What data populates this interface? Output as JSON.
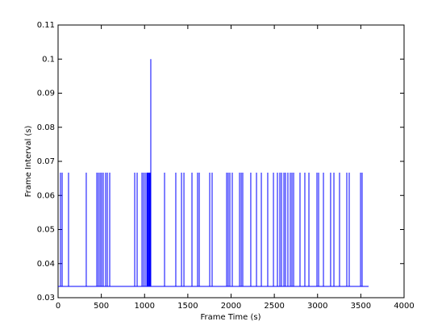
{
  "chart_data": {
    "type": "line",
    "xlabel": "Frame Time (s)",
    "ylabel": "Frame Interval (s)",
    "color": "#0000ff",
    "xlim": [
      0,
      4000
    ],
    "xticks": [
      0,
      500,
      1000,
      1500,
      2000,
      2500,
      3000,
      3500,
      4000
    ],
    "ylim": [
      0.03,
      0.11
    ],
    "yticks": [
      0.03,
      0.04,
      0.05,
      0.06,
      0.07,
      0.08,
      0.09,
      0.1,
      0.11
    ],
    "x": [
      0,
      28,
      28,
      28,
      47,
      47,
      47,
      121,
      121,
      121,
      326,
      326,
      326,
      448,
      448,
      448,
      466,
      466,
      466,
      485,
      485,
      485,
      503,
      503,
      503,
      522,
      522,
      522,
      550,
      550,
      550,
      569,
      569,
      569,
      597,
      597,
      597,
      886,
      886,
      886,
      914,
      914,
      914,
      970,
      970,
      970,
      988,
      988,
      988,
      1007,
      1007,
      1007,
      1026,
      1026,
      1026,
      1035,
      1035,
      1035,
      1044,
      1044,
      1044,
      1054,
      1054,
      1054,
      1063,
      1063,
      1063,
      1072,
      1072,
      1072,
      1231,
      1231,
      1231,
      1361,
      1361,
      1361,
      1427,
      1427,
      1427,
      1455,
      1455,
      1455,
      1548,
      1548,
      1548,
      1613,
      1613,
      1613,
      1632,
      1632,
      1632,
      1753,
      1753,
      1753,
      1781,
      1781,
      1781,
      1949,
      1949,
      1949,
      1967,
      1967,
      1967,
      1986,
      1986,
      1986,
      2014,
      2014,
      2014,
      2098,
      2098,
      2098,
      2117,
      2117,
      2117,
      2135,
      2135,
      2135,
      2228,
      2228,
      2228,
      2294,
      2294,
      2294,
      2350,
      2350,
      2350,
      2424,
      2424,
      2424,
      2490,
      2490,
      2490,
      2536,
      2536,
      2536,
      2564,
      2564,
      2564,
      2583,
      2583,
      2583,
      2611,
      2611,
      2611,
      2629,
      2629,
      2629,
      2657,
      2657,
      2657,
      2685,
      2685,
      2685,
      2704,
      2704,
      2704,
      2723,
      2723,
      2723,
      2797,
      2797,
      2797,
      2853,
      2853,
      2853,
      2900,
      2900,
      2900,
      2993,
      2993,
      2993,
      3012,
      3012,
      3012,
      3068,
      3068,
      3068,
      3151,
      3151,
      3151,
      3189,
      3189,
      3189,
      3254,
      3254,
      3254,
      3338,
      3338,
      3338,
      3366,
      3366,
      3366,
      3497,
      3497,
      3497,
      3515,
      3515,
      3515,
      3590
    ],
    "values": [
      0.0333,
      0.0333,
      0.0667,
      0.0333,
      0.0333,
      0.0667,
      0.0333,
      0.0333,
      0.0667,
      0.0333,
      0.0333,
      0.0667,
      0.0333,
      0.0333,
      0.0667,
      0.0333,
      0.0333,
      0.0667,
      0.0333,
      0.0333,
      0.0667,
      0.0333,
      0.0333,
      0.0667,
      0.0333,
      0.0333,
      0.0667,
      0.0333,
      0.0333,
      0.0667,
      0.0333,
      0.0333,
      0.0667,
      0.0333,
      0.0333,
      0.0667,
      0.0333,
      0.0333,
      0.0667,
      0.0333,
      0.0333,
      0.0667,
      0.0333,
      0.0333,
      0.0667,
      0.0333,
      0.0333,
      0.0667,
      0.0333,
      0.0333,
      0.0667,
      0.0333,
      0.0333,
      0.0667,
      0.0333,
      0.0333,
      0.0667,
      0.0333,
      0.0333,
      0.0667,
      0.0333,
      0.0333,
      0.0667,
      0.0333,
      0.0333,
      0.0667,
      0.0333,
      0.0333,
      0.1,
      0.0333,
      0.0333,
      0.0667,
      0.0333,
      0.0333,
      0.0667,
      0.0333,
      0.0333,
      0.0667,
      0.0333,
      0.0333,
      0.0667,
      0.0333,
      0.0333,
      0.0667,
      0.0333,
      0.0333,
      0.0667,
      0.0333,
      0.0333,
      0.0667,
      0.0333,
      0.0333,
      0.0667,
      0.0333,
      0.0333,
      0.0667,
      0.0333,
      0.0333,
      0.0667,
      0.0333,
      0.0333,
      0.0667,
      0.0333,
      0.0333,
      0.0667,
      0.0333,
      0.0333,
      0.0667,
      0.0333,
      0.0333,
      0.0667,
      0.0333,
      0.0333,
      0.0667,
      0.0333,
      0.0333,
      0.0667,
      0.0333,
      0.0333,
      0.0667,
      0.0333,
      0.0333,
      0.0667,
      0.0333,
      0.0333,
      0.0667,
      0.0333,
      0.0333,
      0.0667,
      0.0333,
      0.0333,
      0.0667,
      0.0333,
      0.0333,
      0.0667,
      0.0333,
      0.0333,
      0.0667,
      0.0333,
      0.0333,
      0.0667,
      0.0333,
      0.0333,
      0.0667,
      0.0333,
      0.0333,
      0.0667,
      0.0333,
      0.0333,
      0.0667,
      0.0333,
      0.0333,
      0.0667,
      0.0333,
      0.0333,
      0.0667,
      0.0333,
      0.0333,
      0.0667,
      0.0333,
      0.0333,
      0.0667,
      0.0333,
      0.0333,
      0.0667,
      0.0333,
      0.0333,
      0.0667,
      0.0333,
      0.0333,
      0.0667,
      0.0333,
      0.0333,
      0.0667,
      0.0333,
      0.0333,
      0.0667,
      0.0333,
      0.0333,
      0.0667,
      0.0333,
      0.0333,
      0.0667,
      0.0333,
      0.0333,
      0.0667,
      0.0333,
      0.0333,
      0.0667,
      0.0333,
      0.0333,
      0.0667,
      0.0333,
      0.0333,
      0.0667,
      0.0333,
      0.0333,
      0.0667,
      0.0333,
      0.0333
    ]
  }
}
